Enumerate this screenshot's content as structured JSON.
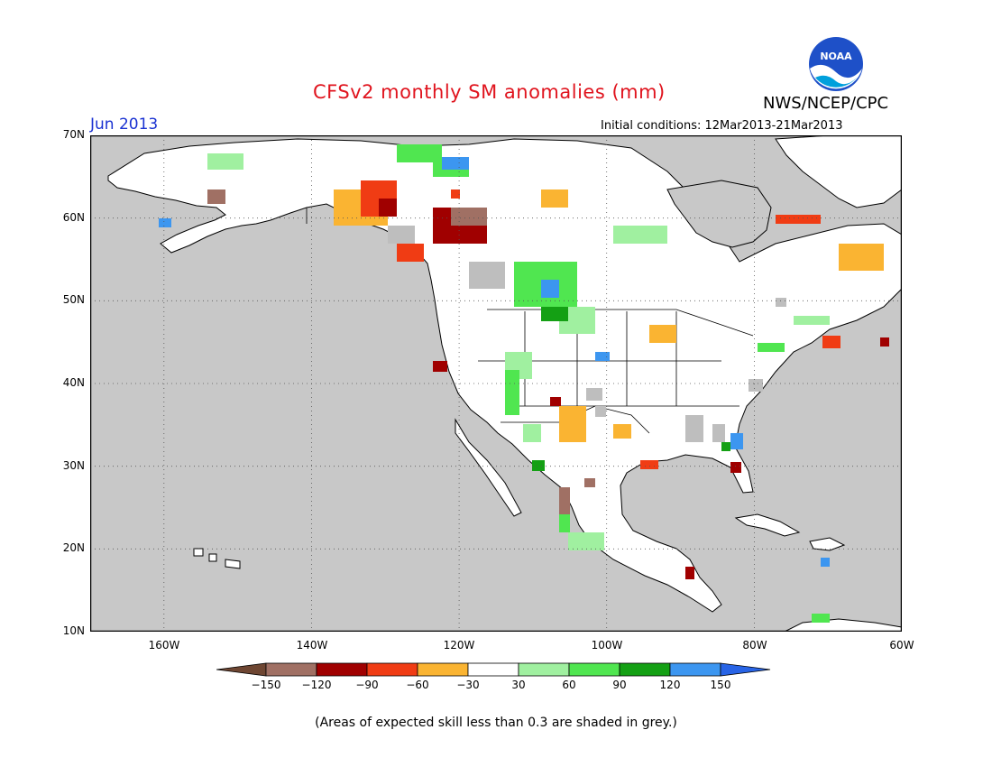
{
  "header": {
    "title": "CFSv2 monthly SM anomalies (mm)",
    "agency": "NWS/NCEP/CPC",
    "period": "Jun 2013",
    "initial_conditions": "Initial conditions: 12Mar2013-21Mar2013",
    "logo_text": "NOAA"
  },
  "map": {
    "lat_labels": [
      "70N",
      "60N",
      "50N",
      "40N",
      "30N",
      "20N",
      "10N"
    ],
    "lon_labels": [
      "160W",
      "140W",
      "120W",
      "100W",
      "80W",
      "60W"
    ],
    "colors": {
      "ocean": "#c8c8c8",
      "land": "#ffffff",
      "grey_skill": "#bebebe",
      "light_green": "#a0f0a0",
      "green": "#50e650",
      "dark_green": "#14a014",
      "blue": "#3c96f0",
      "orange": "#fab432",
      "red": "#f03c14",
      "dark_red": "#a00000",
      "brown": "#a07064"
    }
  },
  "colorbar": {
    "colors": [
      "#6e4632",
      "#a07064",
      "#a00000",
      "#f03c14",
      "#fab432",
      "#ffffff",
      "#a0f0a0",
      "#50e650",
      "#14a014",
      "#3c96f0",
      "#2864e6"
    ],
    "tick_labels": [
      "−150",
      "−120",
      "−90",
      "−60",
      "−30",
      "30",
      "60",
      "90",
      "120",
      "150"
    ]
  },
  "footnote": "(Areas of expected skill less than 0.3 are shaded in grey.)"
}
